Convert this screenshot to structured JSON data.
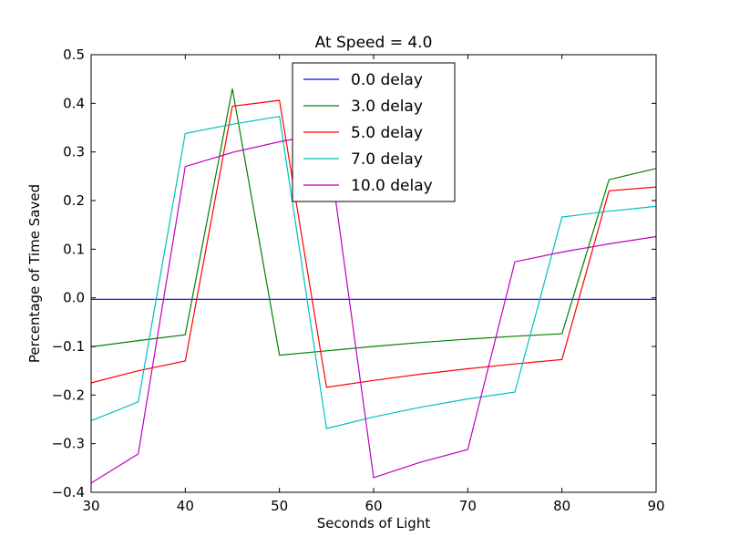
{
  "chart_data": {
    "type": "line",
    "title": "At Speed = 4.0",
    "xlabel": "Seconds of Light",
    "ylabel": "Percentage of Time Saved",
    "xlim": [
      30,
      90
    ],
    "ylim": [
      -0.4,
      0.5
    ],
    "xticks": [
      30,
      40,
      50,
      60,
      70,
      80,
      90
    ],
    "xtick_labels": [
      "30",
      "40",
      "50",
      "60",
      "70",
      "80",
      "90"
    ],
    "yticks": [
      -0.4,
      -0.3,
      -0.2,
      -0.1,
      0.0,
      0.1,
      0.2,
      0.3,
      0.4,
      0.5
    ],
    "ytick_labels": [
      "−0.4",
      "−0.3",
      "−0.2",
      "−0.1",
      "0.0",
      "0.1",
      "0.2",
      "0.3",
      "0.4",
      "0.5"
    ],
    "grid": false,
    "legend_position": "top-center",
    "x": [
      30,
      35,
      40,
      45,
      50,
      55,
      60,
      65,
      70,
      75,
      80,
      85,
      90
    ],
    "series": [
      {
        "name": "0.0 delay",
        "color": "#0000ff",
        "values": [
          -0.003,
          -0.003,
          -0.003,
          -0.003,
          -0.003,
          -0.003,
          -0.003,
          -0.003,
          -0.003,
          -0.003,
          -0.003,
          -0.003,
          -0.003
        ]
      },
      {
        "name": "3.0 delay",
        "color": "#008000",
        "values": [
          -0.101,
          -0.088,
          -0.076,
          0.43,
          -0.118,
          -0.109,
          -0.1,
          -0.092,
          -0.085,
          -0.079,
          -0.074,
          0.243,
          0.266
        ]
      },
      {
        "name": "5.0 delay",
        "color": "#ff0000",
        "values": [
          -0.175,
          -0.15,
          -0.13,
          0.394,
          0.406,
          -0.184,
          -0.17,
          -0.157,
          -0.146,
          -0.136,
          -0.127,
          0.22,
          0.228
        ]
      },
      {
        "name": "7.0 delay",
        "color": "#00bfbf",
        "values": [
          -0.253,
          -0.214,
          0.338,
          0.357,
          0.373,
          -0.269,
          -0.245,
          -0.225,
          -0.208,
          -0.194,
          0.166,
          0.178,
          0.188
        ]
      },
      {
        "name": "10.0 delay",
        "color": "#bf00bf",
        "values": [
          -0.381,
          -0.321,
          0.27,
          0.299,
          0.321,
          0.339,
          -0.37,
          -0.338,
          -0.312,
          0.074,
          0.094,
          0.111,
          0.126
        ]
      }
    ]
  }
}
